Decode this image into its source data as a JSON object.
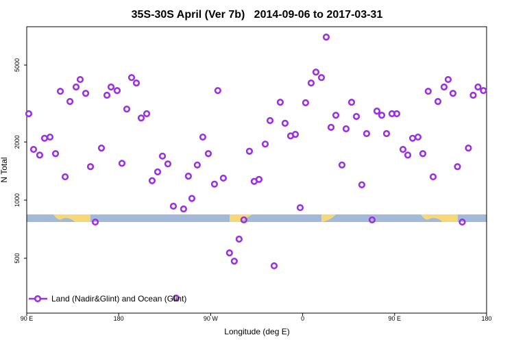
{
  "chart_data": {
    "type": "scatter",
    "title": "35S-30S April (Ver 7b)   2014-09-06 to 2017-03-31",
    "x_label": "Longitude (deg E)",
    "y_label": "N Total",
    "log_scale_y": true,
    "legend_position": "bottom-left",
    "xlim": [
      90,
      540
    ],
    "xticks": [
      {
        "value": 90,
        "label": "90 E"
      },
      180,
      {
        "value": 270,
        "label": "90 W"
      },
      {
        "value": 360,
        "label": "0"
      },
      {
        "value": 450,
        "label": "90 E"
      },
      {
        "value": 540,
        "label": "180"
      }
    ],
    "ylim": [
      260,
      7900
    ],
    "yticks": [
      500,
      1000,
      2000,
      5000
    ],
    "x": [
      92,
      96.7,
      102.7,
      107.4,
      112.8,
      118.2,
      122.9,
      127.6,
      132.3,
      138.3,
      142.3,
      147.7,
      152.4,
      157.1,
      163.1,
      168.5,
      172.5,
      178.5,
      183.2,
      187.9,
      192.6,
      197.3,
      202,
      207.4,
      212.7,
      218.1,
      222.8,
      228.1,
      233.5,
      236.2,
      243.5,
      248.2,
      251.6,
      256.9,
      262.3,
      267.7,
      273.7,
      277,
      282.4,
      288.4,
      293.1,
      297.8,
      302.5,
      307.9,
      312.6,
      317.3,
      323.4,
      328.1,
      332.1,
      338.1,
      342.8,
      348.2,
      352.9,
      357.6,
      362.9,
      368.3,
      373,
      378.4,
      383.1,
      387.8,
      392.5,
      398.5,
      402.5,
      407.9,
      412.6,
      417.9,
      422.6,
      428,
      432.7,
      437.4,
      442.1,
      447.4,
      452.1,
      458.2,
      462.9,
      467.6,
      472.9,
      477.6,
      482.9,
      487.7,
      492.4,
      498.4,
      502.4,
      507.1,
      511.5,
      516.2,
      522.2,
      526.9,
      531.6,
      536.9
    ],
    "series": [
      {
        "name": "Land (Nadir&Glint) and Ocean (Glint)",
        "color": "#9b30e0",
        "values": [
          2800,
          1830,
          1710,
          2090,
          2120,
          1740,
          3660,
          1320,
          3240,
          3850,
          4210,
          3570,
          1490,
          770,
          1860,
          3490,
          3850,
          3690,
          1550,
          2960,
          4310,
          4040,
          2660,
          2800,
          1260,
          1400,
          1690,
          1540,
          930,
          311,
          900,
          1330,
          1020,
          1520,
          2120,
          1740,
          1210,
          3690,
          1300,
          533,
          483,
          628,
          790,
          1790,
          1250,
          1280,
          1950,
          2580,
          457,
          3210,
          2500,
          2150,
          2190,
          914,
          3190,
          4040,
          4600,
          4310,
          6980,
          2380,
          2750,
          1520,
          2340,
          3210,
          2710,
          1200,
          2210,
          790,
          2890,
          2750,
          2210,
          2800,
          2800,
          1830,
          1710,
          2090,
          2120,
          1740,
          3660,
          1320,
          3240,
          3850,
          4210,
          3570,
          1490,
          770,
          1860,
          3490,
          3850,
          3690
        ]
      }
    ]
  }
}
